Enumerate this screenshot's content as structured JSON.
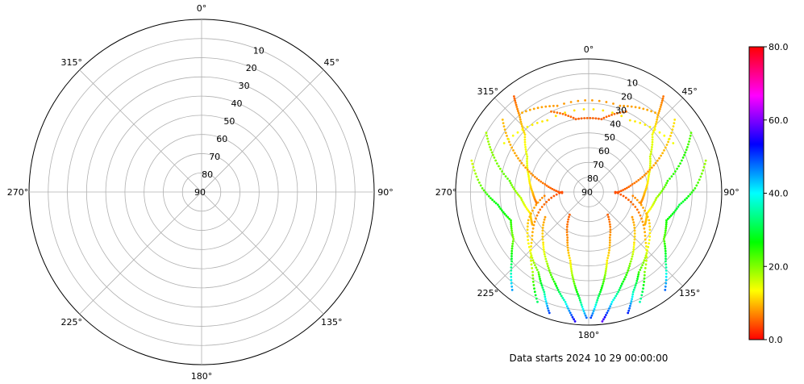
{
  "chart_data": [
    {
      "type": "polar",
      "title": "",
      "theta_ticks": [
        "0°",
        "45°",
        "90°",
        "135°",
        "180°",
        "225°",
        "270°",
        "315°"
      ],
      "r_ticks": [
        "10",
        "20",
        "30",
        "40",
        "50",
        "60",
        "70",
        "80",
        "90"
      ],
      "r_axis": "elevation (90 at center, 0 at edge)",
      "grid": true,
      "points": []
    },
    {
      "type": "scatter",
      "subtype": "polar",
      "theta_ticks": [
        "0°",
        "45°",
        "90°",
        "135°",
        "180°",
        "225°",
        "270°",
        "315°"
      ],
      "r_ticks": [
        "10",
        "20",
        "30",
        "40",
        "50",
        "60",
        "70",
        "80",
        "90"
      ],
      "grid": true,
      "caption": "Data starts 2024 10 29 00:00:00",
      "colorbar": {
        "ticks": [
          "0.0",
          "20.0",
          "40.0",
          "60.0",
          "80.0"
        ],
        "range": [
          0,
          80
        ],
        "colormap": "gist_rainbow",
        "colors": [
          "#ff0000",
          "#ffff00",
          "#00ff00",
          "#00ffff",
          "#0000ff",
          "#ff00ff",
          "#ff0000"
        ]
      },
      "tracks": [
        {
          "azimuths": [
            322,
            318,
            312,
            300,
            285,
            270,
            258
          ],
          "elevations": [
            8,
            20,
            32,
            42,
            48,
            52,
            54
          ],
          "values": [
            5,
            8,
            12,
            15,
            14,
            10,
            6
          ]
        },
        {
          "azimuths": [
            300,
            290,
            278,
            265,
            250,
            240
          ],
          "elevations": [
            10,
            22,
            36,
            44,
            48,
            46
          ],
          "values": [
            18,
            20,
            22,
            17,
            12,
            9
          ]
        },
        {
          "azimuths": [
            285,
            272,
            262,
            250,
            238,
            228,
            218
          ],
          "elevations": [
            8,
            18,
            28,
            34,
            30,
            20,
            6
          ],
          "values": [
            15,
            22,
            28,
            25,
            20,
            30,
            45
          ]
        },
        {
          "azimuths": [
            310,
            300,
            290,
            280,
            268
          ],
          "elevations": [
            14,
            30,
            46,
            60,
            72
          ],
          "values": [
            10,
            9,
            8,
            6,
            4
          ]
        },
        {
          "azimuths": [
            270,
            250,
            230,
            215,
            205
          ],
          "elevations": [
            72,
            55,
            40,
            24,
            8
          ],
          "values": [
            4,
            6,
            10,
            18,
            32
          ]
        },
        {
          "azimuths": [
            265,
            245,
            225,
            212,
            204,
            198
          ],
          "elevations": [
            60,
            45,
            34,
            26,
            16,
            4
          ],
          "values": [
            7,
            10,
            14,
            22,
            34,
            50
          ]
        },
        {
          "azimuths": [
            240,
            222,
            210,
            200,
            192,
            186
          ],
          "elevations": [
            56,
            44,
            34,
            24,
            14,
            2
          ],
          "values": [
            8,
            12,
            18,
            26,
            38,
            55
          ]
        },
        {
          "azimuths": [
            220,
            205,
            195,
            190,
            185,
            181
          ],
          "elevations": [
            70,
            56,
            42,
            30,
            18,
            5
          ],
          "values": [
            5,
            7,
            12,
            20,
            30,
            48
          ]
        },
        {
          "azimuths": [
            38,
            42,
            48,
            60,
            75,
            90,
            102
          ],
          "elevations": [
            8,
            20,
            32,
            42,
            48,
            52,
            54
          ],
          "values": [
            6,
            9,
            14,
            16,
            14,
            10,
            7
          ]
        },
        {
          "azimuths": [
            60,
            70,
            82,
            95,
            110,
            120
          ],
          "elevations": [
            10,
            22,
            36,
            44,
            48,
            46
          ],
          "values": [
            22,
            25,
            24,
            18,
            12,
            9
          ]
        },
        {
          "azimuths": [
            75,
            88,
            98,
            110,
            122,
            132,
            142
          ],
          "elevations": [
            8,
            18,
            28,
            34,
            30,
            20,
            6
          ],
          "values": [
            18,
            24,
            30,
            26,
            22,
            32,
            48
          ]
        },
        {
          "azimuths": [
            50,
            60,
            70,
            80,
            92
          ],
          "elevations": [
            14,
            30,
            46,
            60,
            72
          ],
          "values": [
            12,
            10,
            8,
            6,
            4
          ]
        },
        {
          "azimuths": [
            90,
            110,
            130,
            145,
            155
          ],
          "elevations": [
            72,
            55,
            40,
            24,
            8
          ],
          "values": [
            4,
            6,
            10,
            20,
            36
          ]
        },
        {
          "azimuths": [
            95,
            115,
            135,
            148,
            156,
            162
          ],
          "elevations": [
            60,
            45,
            34,
            26,
            16,
            4
          ],
          "values": [
            7,
            10,
            15,
            24,
            36,
            52
          ]
        },
        {
          "azimuths": [
            120,
            138,
            150,
            160,
            168,
            174
          ],
          "elevations": [
            56,
            44,
            34,
            24,
            14,
            2
          ],
          "values": [
            8,
            12,
            20,
            28,
            40,
            58
          ]
        },
        {
          "azimuths": [
            140,
            155,
            165,
            170,
            175,
            179
          ],
          "elevations": [
            70,
            56,
            42,
            30,
            18,
            5
          ],
          "values": [
            5,
            8,
            12,
            22,
            32,
            50
          ]
        },
        {
          "azimuths": [
            335,
            350,
            10,
            25
          ],
          "elevations": [
            30,
            40,
            40,
            30
          ],
          "values": [
            6,
            5,
            5,
            6
          ]
        },
        {
          "azimuths": [
            320,
            340,
            20,
            40
          ],
          "elevations": [
            20,
            28,
            28,
            20
          ],
          "values": [
            9,
            8,
            8,
            9
          ]
        },
        {
          "azimuths": [
            300,
            330,
            30,
            60
          ],
          "elevations": [
            24,
            34,
            34,
            24
          ],
          "values": [
            14,
            12,
            12,
            14
          ]
        }
      ]
    }
  ]
}
